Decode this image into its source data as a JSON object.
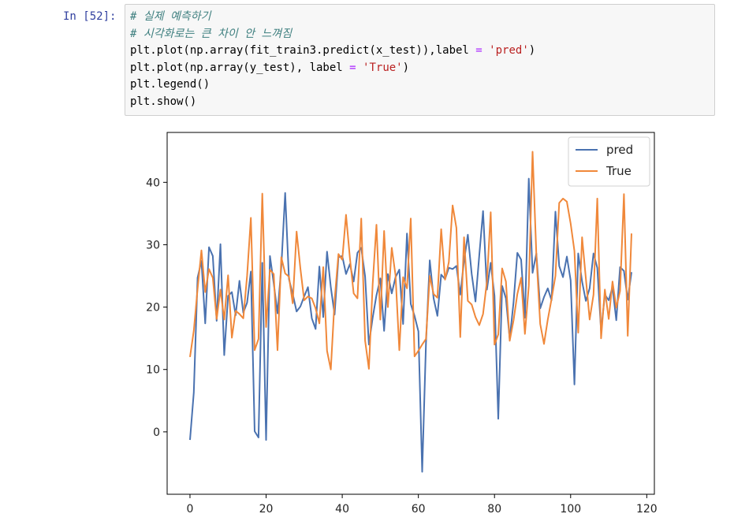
{
  "cell": {
    "prompt": "In [52]:",
    "code_lines": [
      {
        "parts": [
          {
            "t": "# 실제 예측하기",
            "c": "comment"
          }
        ]
      },
      {
        "parts": [
          {
            "t": "# 시각화로는 큰 차이 안 느껴짐",
            "c": "comment"
          }
        ]
      },
      {
        "parts": [
          {
            "t": "plt.plot(np.array(fit_train3.predict(x_test)),label ",
            "c": ""
          },
          {
            "t": "=",
            "c": "op"
          },
          {
            "t": " ",
            "c": ""
          },
          {
            "t": "'pred'",
            "c": "str"
          },
          {
            "t": ")",
            "c": ""
          }
        ]
      },
      {
        "parts": [
          {
            "t": "plt.plot(np.array(y_test), label ",
            "c": ""
          },
          {
            "t": "=",
            "c": "op"
          },
          {
            "t": " ",
            "c": ""
          },
          {
            "t": "'True'",
            "c": "str"
          },
          {
            "t": ")",
            "c": ""
          }
        ]
      },
      {
        "parts": [
          {
            "t": "plt.legend()",
            "c": ""
          }
        ]
      },
      {
        "parts": [
          {
            "t": "plt.show()",
            "c": ""
          }
        ]
      }
    ]
  },
  "chart_data": {
    "type": "line",
    "title": "",
    "xlabel": "",
    "ylabel": "",
    "xlim": [
      -6,
      122
    ],
    "ylim": [
      -10,
      48
    ],
    "xticks": [
      0,
      20,
      40,
      60,
      80,
      100,
      120
    ],
    "yticks": [
      0,
      10,
      20,
      30,
      40
    ],
    "legend": "top-right",
    "grid": false,
    "series": [
      {
        "name": "pred",
        "color": "#4a72b0",
        "values": [
          -1.3,
          6.3,
          24.7,
          27.4,
          17.4,
          29.6,
          28.2,
          17.8,
          30.1,
          12.3,
          21.8,
          22.4,
          18.7,
          24.2,
          19.1,
          20.7,
          25.7,
          0.1,
          -0.9,
          27.1,
          -1.3,
          28.2,
          23.8,
          19.0,
          26.4,
          38.3,
          24.5,
          22.1,
          19.3,
          20.1,
          21.7,
          23.2,
          18.2,
          16.5,
          26.5,
          18.4,
          28.9,
          23.2,
          18.8,
          28.0,
          28.2,
          25.3,
          26.9,
          24.1,
          28.7,
          29.5,
          24.9,
          14.0,
          18.3,
          21.9,
          24.6,
          16.2,
          25.3,
          22.2,
          24.8,
          26.0,
          17.3,
          31.8,
          20.5,
          18.6,
          16.1,
          -6.4,
          14.2,
          27.5,
          21.4,
          18.6,
          25.2,
          24.5,
          26.3,
          26.1,
          26.6,
          22.0,
          27.4,
          31.6,
          25.3,
          20.9,
          28.3,
          35.4,
          22.8,
          27.1,
          21.8,
          2.1,
          23.4,
          21.4,
          14.9,
          20.8,
          28.7,
          27.6,
          18.3,
          40.6,
          25.5,
          28.6,
          19.8,
          21.6,
          23.0,
          21.1,
          35.3,
          26.6,
          24.8,
          28.1,
          24.3,
          7.6,
          28.6,
          24.1,
          21.0,
          23.0,
          28.6,
          26.3,
          16.2,
          22.0,
          21.1,
          23.2,
          17.9,
          26.4,
          25.8,
          21.2,
          25.6
        ]
      },
      {
        "name": "True",
        "color": "#f0883a",
        "values": [
          12.0,
          16.2,
          22.9,
          29.1,
          22.4,
          26.1,
          24.7,
          18.1,
          22.8,
          18.0,
          25.1,
          15.1,
          19.4,
          18.9,
          18.2,
          25.0,
          34.3,
          13.1,
          14.9,
          38.2,
          16.8,
          26.0,
          25.3,
          13.1,
          28.0,
          25.4,
          24.9,
          20.6,
          32.1,
          26.2,
          21.1,
          21.7,
          21.4,
          19.8,
          17.4,
          26.4,
          13.0,
          10.0,
          21.1,
          28.5,
          27.6,
          34.8,
          27.9,
          22.2,
          21.4,
          34.2,
          14.6,
          10.1,
          23.7,
          33.2,
          18.0,
          32.2,
          20.0,
          29.5,
          25.1,
          13.1,
          24.8,
          23.0,
          34.2,
          12.1,
          13.0,
          14.0,
          14.9,
          25.0,
          22.1,
          21.5,
          32.5,
          24.4,
          27.2,
          36.3,
          32.7,
          15.2,
          31.2,
          21.0,
          20.4,
          18.4,
          17.1,
          18.9,
          24.1,
          35.2,
          14.0,
          15.6,
          26.2,
          24.1,
          14.6,
          17.9,
          22.1,
          24.7,
          15.7,
          23.4,
          44.9,
          28.4,
          17.3,
          14.1,
          18.0,
          21.3,
          25.0,
          36.7,
          37.4,
          36.9,
          33.4,
          29.0,
          15.9,
          31.2,
          24.6,
          18.0,
          22.0,
          37.4,
          15.0,
          22.8,
          18.1,
          24.1,
          19.9,
          22.6,
          38.1,
          15.4,
          31.8
        ]
      }
    ]
  }
}
